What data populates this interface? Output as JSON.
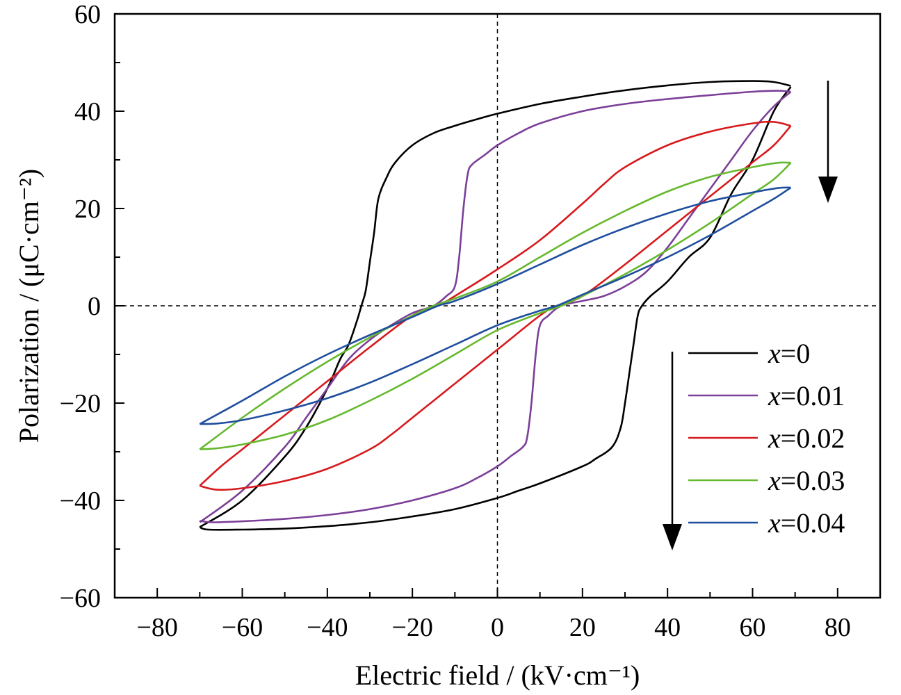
{
  "chart_data": {
    "type": "line",
    "title": "",
    "xlabel": "Electric field / (kV·cm⁻¹)",
    "ylabel": "Polarization / (μC·cm⁻²)",
    "xlim": [
      -90,
      90
    ],
    "ylim": [
      -60,
      60
    ],
    "xticks": [
      -80,
      -60,
      -40,
      -20,
      0,
      20,
      40,
      60,
      80
    ],
    "xtick_labels": [
      "−80",
      "−60",
      "−40",
      "−20",
      "0",
      "20",
      "40",
      "60",
      "80"
    ],
    "yticks": [
      -60,
      -40,
      -20,
      0,
      20,
      40,
      60
    ],
    "ytick_labels": [
      "−60",
      "−40",
      "−20",
      "0",
      "20",
      "40",
      "60"
    ],
    "grid": false,
    "reference_lines": {
      "x": 0,
      "y": 0,
      "style": "dashed"
    },
    "legend": {
      "position": "bottom-right",
      "var": "x"
    },
    "annotations": [
      {
        "type": "arrow",
        "direction": "down",
        "meaning": "increasing x (upper-right branch)"
      },
      {
        "type": "arrow",
        "direction": "down",
        "meaning": "legend order"
      }
    ],
    "series": [
      {
        "name": "x=0",
        "value_label": "=0",
        "color": "#000000",
        "upper": [
          [
            -70,
            -45.5
          ],
          [
            -60,
            -40
          ],
          [
            -50,
            -31
          ],
          [
            -45,
            -25
          ],
          [
            -40,
            -17
          ],
          [
            -37,
            -11
          ],
          [
            -35,
            -8
          ],
          [
            -33,
            -3
          ],
          [
            -32,
            0
          ],
          [
            -31,
            3
          ],
          [
            -30,
            9
          ],
          [
            -29,
            15
          ],
          [
            -28,
            22
          ],
          [
            -26,
            26.5
          ],
          [
            -24,
            29.5
          ],
          [
            -20,
            33
          ],
          [
            -15,
            35.5
          ],
          [
            -10,
            37
          ],
          [
            -5,
            38.3
          ],
          [
            0,
            39.5
          ],
          [
            10,
            41.5
          ],
          [
            20,
            43
          ],
          [
            30,
            44.3
          ],
          [
            40,
            45.3
          ],
          [
            50,
            46
          ],
          [
            60,
            46.2
          ],
          [
            65,
            46
          ],
          [
            69,
            45.2
          ]
        ],
        "lower": [
          [
            69,
            45
          ],
          [
            65,
            40
          ],
          [
            60,
            30
          ],
          [
            55,
            23
          ],
          [
            50,
            14
          ],
          [
            45,
            10
          ],
          [
            40,
            5
          ],
          [
            36,
            2
          ],
          [
            34,
            0
          ],
          [
            33,
            -2
          ],
          [
            32,
            -8
          ],
          [
            31,
            -14
          ],
          [
            30,
            -20
          ],
          [
            29,
            -25
          ],
          [
            27,
            -29
          ],
          [
            23,
            -31.5
          ],
          [
            20,
            -33
          ],
          [
            10,
            -36.5
          ],
          [
            5,
            -38
          ],
          [
            0,
            -39.5
          ],
          [
            -10,
            -41.8
          ],
          [
            -20,
            -43.3
          ],
          [
            -30,
            -44.5
          ],
          [
            -40,
            -45.3
          ],
          [
            -50,
            -45.8
          ],
          [
            -60,
            -46
          ],
          [
            -68,
            -46
          ],
          [
            -70,
            -45.5
          ]
        ]
      },
      {
        "name": "x=0.01",
        "value_label": "=0.01",
        "color": "#7b3f98",
        "upper": [
          [
            -70,
            -44.5
          ],
          [
            -60,
            -38
          ],
          [
            -50,
            -29
          ],
          [
            -45,
            -23
          ],
          [
            -40,
            -17
          ],
          [
            -35,
            -11
          ],
          [
            -30,
            -7
          ],
          [
            -25,
            -4
          ],
          [
            -20,
            -1.5
          ],
          [
            -15,
            0
          ],
          [
            -12,
            2
          ],
          [
            -10,
            4
          ],
          [
            -9,
            10
          ],
          [
            -8,
            20
          ],
          [
            -7,
            27
          ],
          [
            -6,
            29
          ],
          [
            -3,
            31
          ],
          [
            0,
            33
          ],
          [
            5,
            35.5
          ],
          [
            10,
            37.5
          ],
          [
            20,
            40
          ],
          [
            30,
            41.5
          ],
          [
            40,
            42.5
          ],
          [
            50,
            43.3
          ],
          [
            60,
            44
          ],
          [
            66,
            44.2
          ],
          [
            69,
            44
          ]
        ],
        "lower": [
          [
            69,
            44
          ],
          [
            65,
            41
          ],
          [
            60,
            36
          ],
          [
            55,
            30
          ],
          [
            50,
            24
          ],
          [
            45,
            18
          ],
          [
            40,
            12
          ],
          [
            35,
            7
          ],
          [
            30,
            4
          ],
          [
            25,
            2
          ],
          [
            20,
            1
          ],
          [
            15,
            0
          ],
          [
            12,
            -2
          ],
          [
            10,
            -4
          ],
          [
            9,
            -10
          ],
          [
            8,
            -20
          ],
          [
            7,
            -27
          ],
          [
            6,
            -29
          ],
          [
            3,
            -31
          ],
          [
            0,
            -33
          ],
          [
            -5,
            -35.5
          ],
          [
            -10,
            -37.5
          ],
          [
            -20,
            -40
          ],
          [
            -30,
            -41.8
          ],
          [
            -40,
            -43
          ],
          [
            -50,
            -43.8
          ],
          [
            -60,
            -44.3
          ],
          [
            -67,
            -44.5
          ],
          [
            -70,
            -44.2
          ]
        ]
      },
      {
        "name": "x=0.02",
        "value_label": "=0.02",
        "color": "#d7191c",
        "upper": [
          [
            -70,
            -37
          ],
          [
            -65,
            -33
          ],
          [
            -60,
            -29.5
          ],
          [
            -50,
            -22.5
          ],
          [
            -40,
            -15.5
          ],
          [
            -30,
            -8.5
          ],
          [
            -20,
            -2
          ],
          [
            -14,
            0
          ],
          [
            -10,
            2
          ],
          [
            0,
            7.5
          ],
          [
            10,
            13.5
          ],
          [
            20,
            21
          ],
          [
            25,
            25
          ],
          [
            30,
            28.5
          ],
          [
            40,
            33
          ],
          [
            50,
            35.8
          ],
          [
            60,
            37.5
          ],
          [
            65,
            37.8
          ],
          [
            69,
            37
          ]
        ],
        "lower": [
          [
            69,
            37
          ],
          [
            65,
            33
          ],
          [
            60,
            29.5
          ],
          [
            50,
            22.5
          ],
          [
            40,
            15.5
          ],
          [
            30,
            8.5
          ],
          [
            20,
            2
          ],
          [
            14,
            0
          ],
          [
            10,
            -2
          ],
          [
            0,
            -9
          ],
          [
            -10,
            -16
          ],
          [
            -20,
            -23
          ],
          [
            -25,
            -26.5
          ],
          [
            -30,
            -29.5
          ],
          [
            -40,
            -33.5
          ],
          [
            -50,
            -36
          ],
          [
            -60,
            -37.5
          ],
          [
            -66,
            -37.8
          ],
          [
            -70,
            -37
          ]
        ]
      },
      {
        "name": "x=0.03",
        "value_label": "=0.03",
        "color": "#66b82e",
        "upper": [
          [
            -70,
            -29.5
          ],
          [
            -60,
            -23
          ],
          [
            -50,
            -17
          ],
          [
            -40,
            -11.5
          ],
          [
            -30,
            -6.5
          ],
          [
            -20,
            -2
          ],
          [
            -15,
            0
          ],
          [
            -10,
            1.5
          ],
          [
            0,
            5
          ],
          [
            10,
            10
          ],
          [
            20,
            15
          ],
          [
            30,
            19.5
          ],
          [
            40,
            23.5
          ],
          [
            50,
            26.5
          ],
          [
            60,
            28.5
          ],
          [
            66,
            29.4
          ],
          [
            69,
            29.4
          ]
        ],
        "lower": [
          [
            69,
            29.4
          ],
          [
            65,
            26
          ],
          [
            60,
            23
          ],
          [
            50,
            17
          ],
          [
            40,
            11.5
          ],
          [
            30,
            6.5
          ],
          [
            20,
            2
          ],
          [
            15,
            0
          ],
          [
            10,
            -1.5
          ],
          [
            0,
            -5
          ],
          [
            -10,
            -10
          ],
          [
            -20,
            -15
          ],
          [
            -30,
            -19.5
          ],
          [
            -40,
            -23.5
          ],
          [
            -50,
            -26.5
          ],
          [
            -60,
            -28.5
          ],
          [
            -66,
            -29.3
          ],
          [
            -70,
            -29.5
          ]
        ]
      },
      {
        "name": "x=0.04",
        "value_label": "=0.04",
        "color": "#1f4e9e",
        "upper": [
          [
            -70,
            -24.3
          ],
          [
            -60,
            -19.5
          ],
          [
            -50,
            -14.5
          ],
          [
            -40,
            -10
          ],
          [
            -30,
            -6
          ],
          [
            -20,
            -2.3
          ],
          [
            -14,
            0
          ],
          [
            -10,
            1
          ],
          [
            0,
            4.5
          ],
          [
            10,
            8.5
          ],
          [
            20,
            12.5
          ],
          [
            30,
            16
          ],
          [
            40,
            19
          ],
          [
            50,
            21.5
          ],
          [
            60,
            23.3
          ],
          [
            66,
            24.2
          ],
          [
            69,
            24.3
          ]
        ],
        "lower": [
          [
            69,
            24.3
          ],
          [
            65,
            22
          ],
          [
            60,
            19.5
          ],
          [
            50,
            14.5
          ],
          [
            40,
            10
          ],
          [
            30,
            6
          ],
          [
            20,
            2.3
          ],
          [
            14,
            0
          ],
          [
            10,
            -1
          ],
          [
            0,
            -4
          ],
          [
            -10,
            -8
          ],
          [
            -20,
            -12
          ],
          [
            -30,
            -15.8
          ],
          [
            -40,
            -19
          ],
          [
            -50,
            -21.5
          ],
          [
            -60,
            -23.5
          ],
          [
            -66,
            -24.2
          ],
          [
            -70,
            -24.3
          ]
        ]
      }
    ]
  }
}
